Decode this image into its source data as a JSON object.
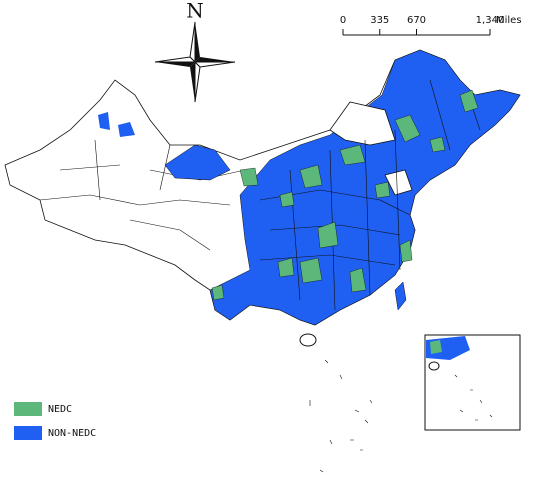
{
  "north_arrow": {
    "label": "N"
  },
  "scale_bar": {
    "ticks": [
      0,
      335,
      670,
      {
        "value": 1340,
        "label": "1,340"
      }
    ],
    "max": 1340,
    "unit": "Miles"
  },
  "legend": {
    "items": [
      {
        "label": "NEDC",
        "color": "#5cb87a"
      },
      {
        "label": "NON-NEDC",
        "color": "#1f5ff2"
      }
    ]
  }
}
